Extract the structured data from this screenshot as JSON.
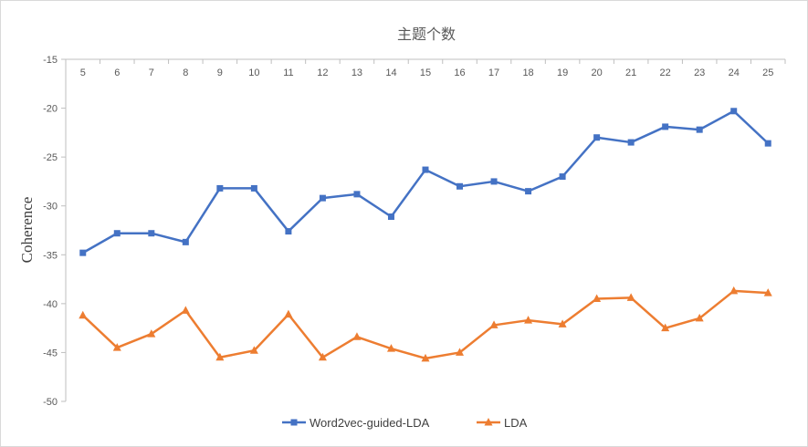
{
  "chart_data": {
    "type": "line",
    "title": "主题个数",
    "xlabel": "",
    "ylabel": "Coherence",
    "categories": [
      "5",
      "6",
      "7",
      "8",
      "9",
      "10",
      "11",
      "12",
      "13",
      "14",
      "15",
      "16",
      "17",
      "18",
      "19",
      "20",
      "21",
      "22",
      "23",
      "24",
      "25"
    ],
    "ylim": [
      -50,
      -15
    ],
    "yticks": [
      "-15",
      "-20",
      "-25",
      "-30",
      "-35",
      "-40",
      "-45",
      "-50"
    ],
    "x_axis_position": "top",
    "grid": false,
    "legend_position": "bottom",
    "series": [
      {
        "name": "Word2vec-guided-LDA",
        "color": "#4472C4",
        "marker": "square",
        "values": [
          -34.8,
          -32.8,
          -32.8,
          -33.7,
          -28.2,
          -28.2,
          -32.6,
          -29.2,
          -28.8,
          -31.1,
          -26.3,
          -28.0,
          -27.5,
          -28.5,
          -27.0,
          -23.0,
          -23.5,
          -21.9,
          -22.2,
          -20.3,
          -23.6
        ]
      },
      {
        "name": "LDA",
        "color": "#ED7D31",
        "marker": "triangle",
        "values": [
          -41.2,
          -44.5,
          -43.1,
          -40.7,
          -45.5,
          -44.8,
          -41.1,
          -45.5,
          -43.4,
          -44.6,
          -45.6,
          -45.0,
          -42.2,
          -41.7,
          -42.1,
          -39.5,
          -39.4,
          -42.5,
          -41.5,
          -38.7,
          -38.9
        ]
      }
    ]
  }
}
